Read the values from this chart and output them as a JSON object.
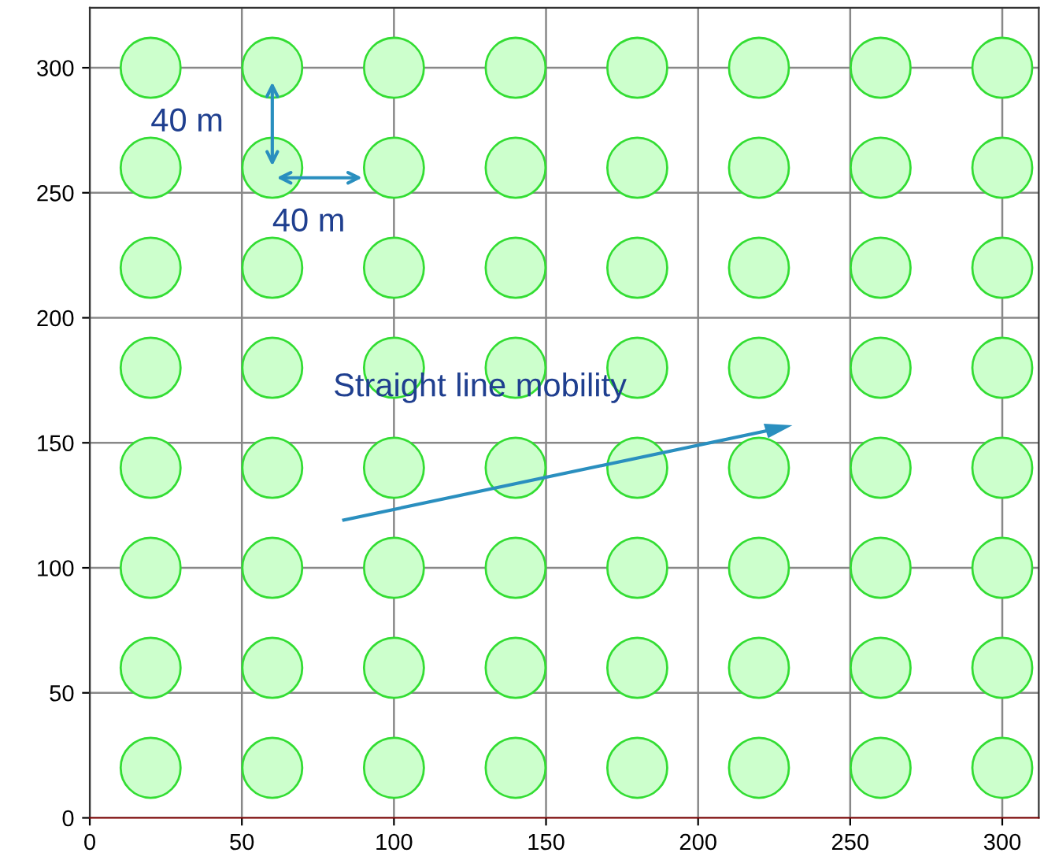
{
  "chart_data": {
    "type": "scatter",
    "x": [
      20,
      60,
      100,
      140,
      180,
      220,
      260,
      300,
      20,
      60,
      100,
      140,
      180,
      220,
      260,
      300,
      20,
      60,
      100,
      140,
      180,
      220,
      260,
      300,
      20,
      60,
      100,
      140,
      180,
      220,
      260,
      300,
      20,
      60,
      100,
      140,
      180,
      220,
      260,
      300,
      20,
      60,
      100,
      140,
      180,
      220,
      260,
      300,
      20,
      60,
      100,
      140,
      180,
      220,
      260,
      300,
      20,
      60,
      100,
      140,
      180,
      220,
      260,
      300
    ],
    "values": [
      20,
      20,
      20,
      20,
      20,
      20,
      20,
      20,
      60,
      60,
      60,
      60,
      60,
      60,
      60,
      60,
      100,
      100,
      100,
      100,
      100,
      100,
      100,
      100,
      140,
      140,
      140,
      140,
      140,
      140,
      140,
      140,
      180,
      180,
      180,
      180,
      180,
      180,
      180,
      180,
      220,
      220,
      220,
      220,
      220,
      220,
      220,
      220,
      260,
      260,
      260,
      260,
      260,
      260,
      260,
      260,
      300,
      300,
      300,
      300,
      300,
      300,
      300,
      300
    ],
    "color": "#ccffcc",
    "marker": "circle",
    "xlim": [
      0,
      312
    ],
    "ylim": [
      0,
      324
    ],
    "xticks": [
      0,
      50,
      100,
      150,
      200,
      250,
      300
    ],
    "yticks": [
      0,
      50,
      100,
      150,
      200,
      250,
      300
    ],
    "grid": true,
    "annotations": [
      "40 m",
      "40 m",
      "Straight line mobility"
    ]
  }
}
